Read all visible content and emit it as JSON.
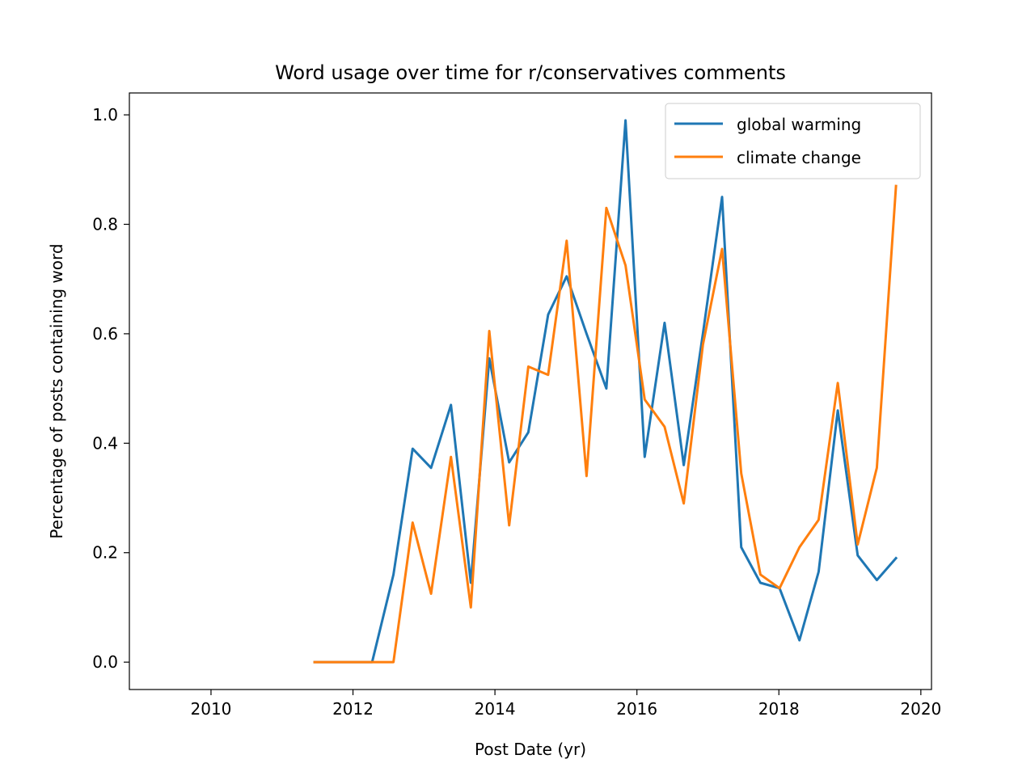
{
  "chart_data": {
    "type": "line",
    "title": "Word usage over time for r/conservatives comments",
    "xlabel": "Post Date (yr)",
    "ylabel": "Percentage of posts containing word",
    "xlim": [
      2008.85,
      2020.15
    ],
    "ylim": [
      -0.05,
      1.04
    ],
    "xticks": [
      2010,
      2012,
      2014,
      2016,
      2018,
      2020
    ],
    "xtick_labels": [
      "2010",
      "2012",
      "2014",
      "2016",
      "2018",
      "2020"
    ],
    "yticks": [
      0.0,
      0.2,
      0.4,
      0.6,
      0.8,
      1.0
    ],
    "ytick_labels": [
      "0.0",
      "0.2",
      "0.4",
      "0.6",
      "0.8",
      "1.0"
    ],
    "grid": false,
    "legend_position": "top-right",
    "x": [
      2011.46,
      2011.73,
      2011.99,
      2012.27,
      2012.57,
      2012.84,
      2013.1,
      2013.38,
      2013.66,
      2013.92,
      2014.2,
      2014.47,
      2014.75,
      2015.01,
      2015.29,
      2015.57,
      2015.84,
      2016.11,
      2016.39,
      2016.66,
      2016.93,
      2017.2,
      2017.47,
      2017.74,
      2018.01,
      2018.29,
      2018.56,
      2018.83,
      2019.11,
      2019.38,
      2019.65
    ],
    "series": [
      {
        "name": "global warming",
        "color": "#1f77b4",
        "values": [
          0.0,
          0.0,
          0.0,
          0.0,
          0.16,
          0.39,
          0.355,
          0.47,
          0.145,
          0.555,
          0.365,
          0.42,
          0.635,
          0.705,
          0.6,
          0.5,
          0.99,
          0.375,
          0.62,
          0.36,
          0.6,
          0.85,
          0.21,
          0.145,
          0.135,
          0.04,
          0.165,
          0.46,
          0.195,
          0.15,
          0.19
        ]
      },
      {
        "name": "climate change",
        "color": "#ff7f0e",
        "values": [
          0.0,
          0.0,
          0.0,
          0.0,
          0.0,
          0.255,
          0.125,
          0.375,
          0.1,
          0.605,
          0.25,
          0.54,
          0.525,
          0.77,
          0.34,
          0.83,
          0.725,
          0.48,
          0.43,
          0.29,
          0.58,
          0.755,
          0.345,
          0.16,
          0.135,
          0.21,
          0.26,
          0.51,
          0.215,
          0.355,
          0.87
        ]
      }
    ]
  }
}
